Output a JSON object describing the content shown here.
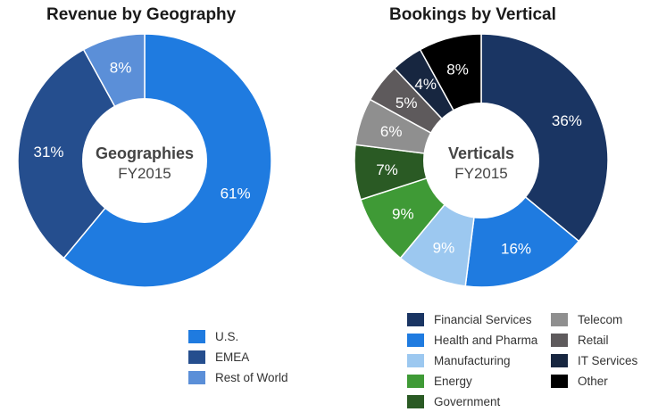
{
  "chart_data": [
    {
      "type": "pie",
      "title": "Revenue by Geography",
      "center_label": {
        "title": "Geographies",
        "subtitle": "FY2015"
      },
      "slices": [
        {
          "name": "U.S.",
          "value": 61,
          "label": "61%",
          "color": "#1f7be0"
        },
        {
          "name": "EMEA",
          "value": 31,
          "label": "31%",
          "color": "#254e8e"
        },
        {
          "name": "Rest of World",
          "value": 8,
          "label": "8%",
          "color": "#5b8fd8"
        }
      ]
    },
    {
      "type": "pie",
      "title": "Bookings by Vertical",
      "center_label": {
        "title": "Verticals",
        "subtitle": "FY2015"
      },
      "slices": [
        {
          "name": "Financial Services",
          "value": 36,
          "label": "36%",
          "color": "#1a3563"
        },
        {
          "name": "Health and Pharma",
          "value": 16,
          "label": "16%",
          "color": "#1f7be0"
        },
        {
          "name": "Manufacturing",
          "value": 9,
          "label": "9%",
          "color": "#9cc8f0"
        },
        {
          "name": "Energy",
          "value": 9,
          "label": "9%",
          "color": "#3f9a36"
        },
        {
          "name": "Government",
          "value": 7,
          "label": "7%",
          "color": "#2a5a24"
        },
        {
          "name": "Telecom",
          "value": 6,
          "label": "6%",
          "color": "#8f8f8f"
        },
        {
          "name": "Retail",
          "value": 5,
          "label": "5%",
          "color": "#5e5a5c"
        },
        {
          "name": "IT Services",
          "value": 4,
          "label": "4%",
          "color": "#172640"
        },
        {
          "name": "Other",
          "value": 8,
          "label": "8%",
          "color": "#000000"
        }
      ]
    }
  ]
}
